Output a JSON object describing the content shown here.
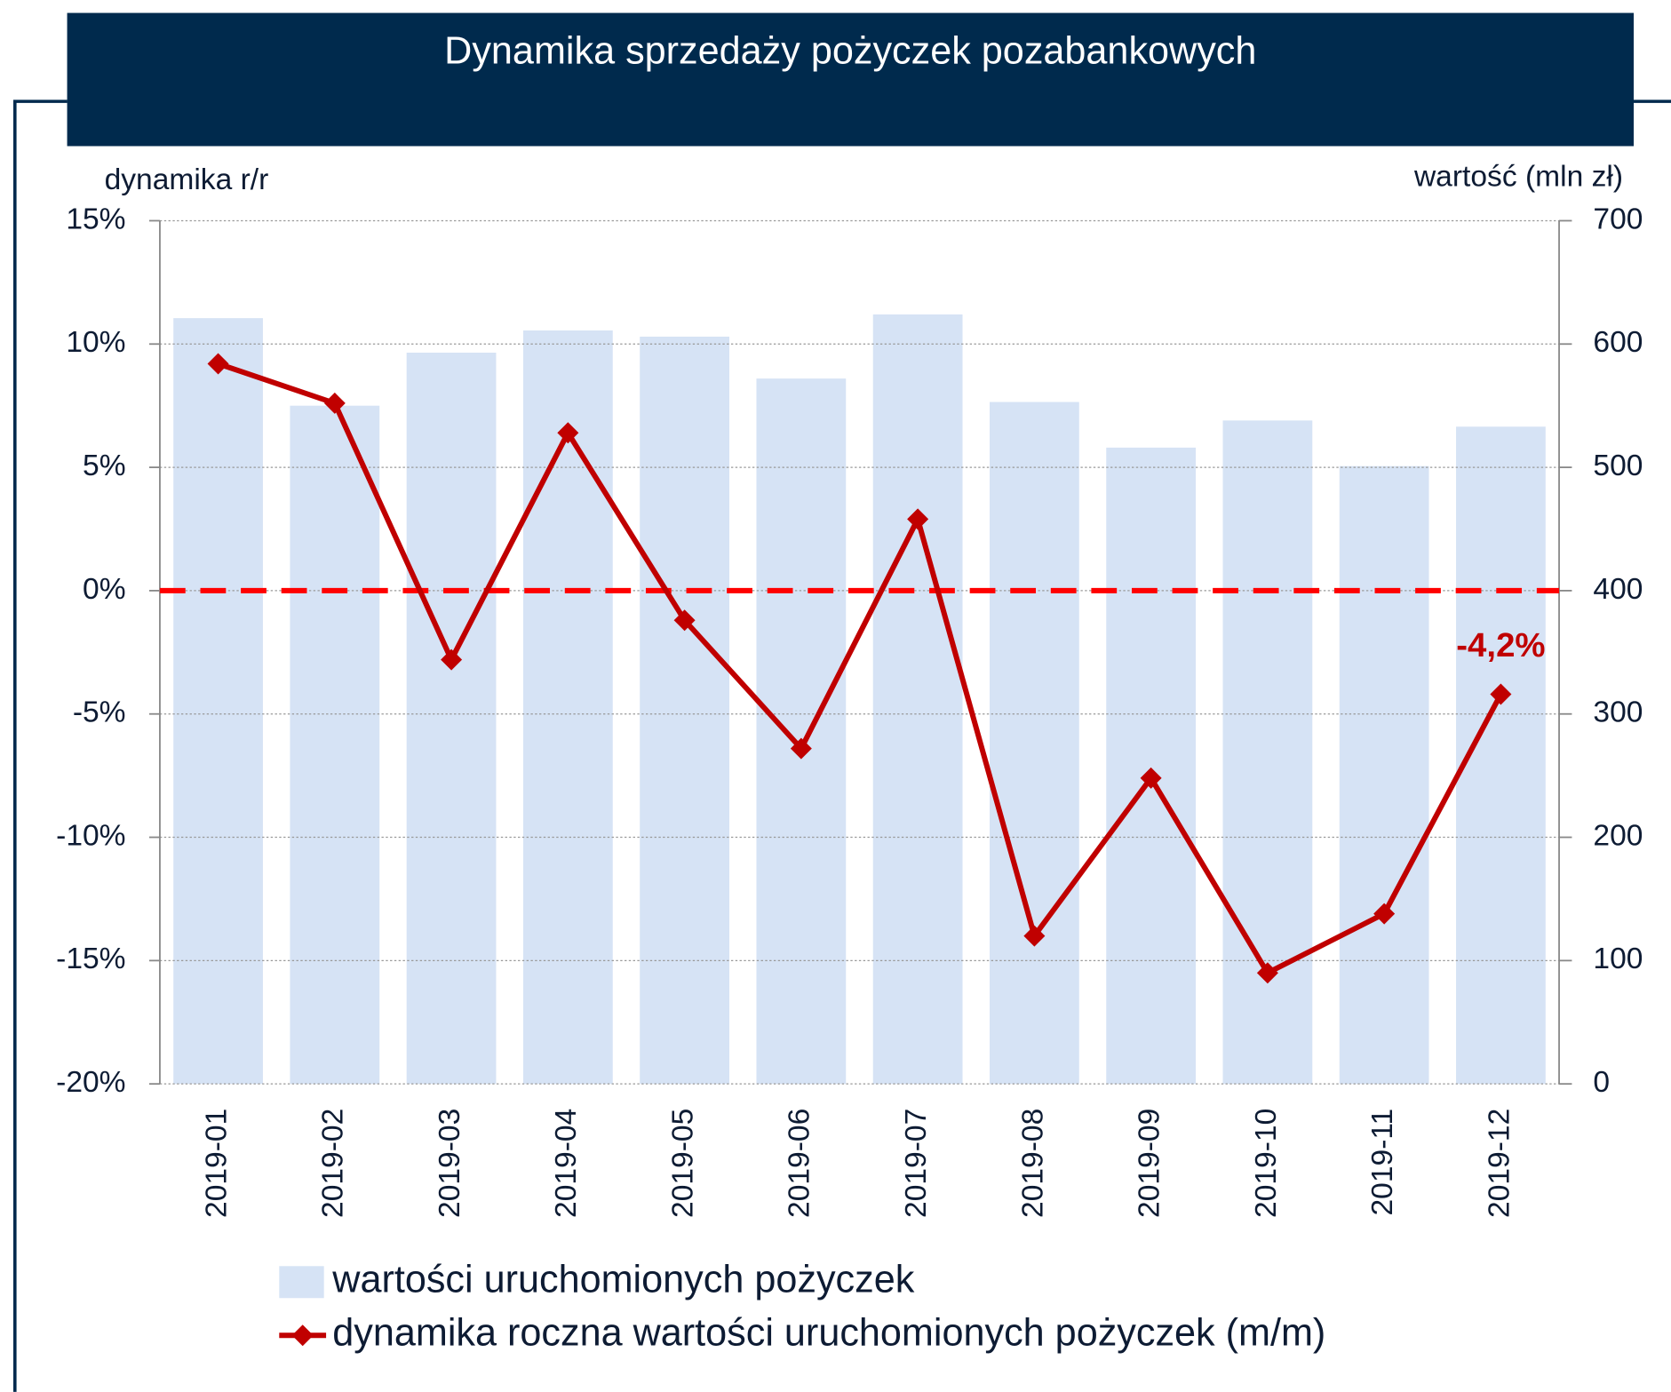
{
  "chart_data": {
    "type": "bar_line",
    "title": "Dynamika sprzedaży pożyczek pozabankowych",
    "y_label": "dynamika r/r",
    "y2_label": "wartość (mln zł)",
    "categories": [
      "2019-01",
      "2019-02",
      "2019-03",
      "2019-04",
      "2019-05",
      "2019-06",
      "2019-07",
      "2019-08",
      "2019-09",
      "2019-10",
      "2019-11",
      "2019-12"
    ],
    "series": [
      {
        "name": "wartości uruchomionych pożyczek",
        "type": "bar",
        "axis": "y2",
        "color": "#d6e3f5",
        "values": [
          621,
          550,
          593,
          611,
          606,
          572,
          624,
          553,
          516,
          538,
          501,
          533
        ]
      },
      {
        "name": "dynamika roczna wartości uruchomionych pożyczek (m/m)",
        "type": "line",
        "color": "#c00000",
        "values": [
          9.2,
          7.6,
          -2.8,
          6.4,
          -1.2,
          -6.4,
          2.9,
          -14.0,
          -7.6,
          -15.5,
          -13.1,
          -4.2
        ],
        "value_labels": [
          null,
          null,
          null,
          null,
          null,
          null,
          null,
          null,
          null,
          null,
          null,
          "-4,2%"
        ]
      }
    ],
    "ylim": [
      -20,
      15
    ],
    "yticks": [
      {
        "value": -20,
        "label": "-20%"
      },
      {
        "value": -15,
        "label": "-15%"
      },
      {
        "value": -10,
        "label": "-10%"
      },
      {
        "value": -5,
        "label": "-5%"
      },
      {
        "value": 0,
        "label": "0%"
      },
      {
        "value": 5,
        "label": "5%"
      },
      {
        "value": 10,
        "label": "10%"
      },
      {
        "value": 15,
        "label": "15%"
      }
    ],
    "y2lim": [
      0,
      700
    ],
    "y2ticks": [
      0,
      100,
      200,
      300,
      400,
      500,
      600,
      700
    ],
    "grid": true,
    "reference_line": {
      "value": 0,
      "color": "#ff0000"
    }
  }
}
